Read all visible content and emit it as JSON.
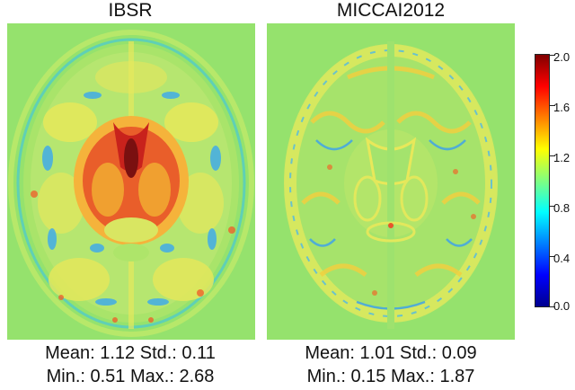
{
  "panels": [
    {
      "title": "IBSR",
      "stats_line1": "Mean: 1.12 Std.: 0.11",
      "stats_line2": "Min.: 0.51 Max.: 2.68"
    },
    {
      "title": "MICCAI2012",
      "stats_line1": "Mean: 1.01 Std.: 0.09",
      "stats_line2": "Min.: 0.15 Max.: 1.87"
    }
  ],
  "colorbar": {
    "ticks": [
      "2.0",
      "1.6",
      "1.2",
      "0.8",
      "0.4",
      "0.0"
    ],
    "range": [
      0.0,
      2.0
    ],
    "colormap": "jet"
  },
  "colors": {
    "background_field": "#95e26d"
  }
}
